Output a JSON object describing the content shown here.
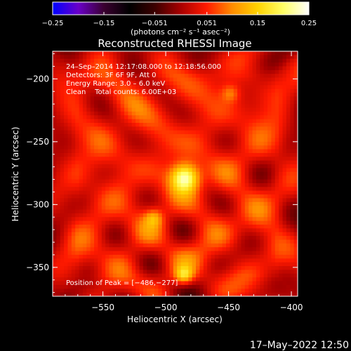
{
  "chart_data": {
    "type": "heatmap",
    "title": "Reconstructed RHESSI Image",
    "xlabel": "Heliocentric X (arcsec)",
    "ylabel": "Heliocentric Y (arcsec)",
    "xlim": [
      -590,
      -395
    ],
    "ylim": [
      -373,
      -178
    ],
    "x_ticks": [
      -550,
      -500,
      -450,
      -400
    ],
    "y_ticks": [
      -200,
      -250,
      -300,
      -350
    ],
    "x_tick_labels": [
      "−550",
      "−500",
      "−450",
      "−400"
    ],
    "y_tick_labels": [
      "−200",
      "−250",
      "−300",
      "−350"
    ],
    "peak": {
      "x": -486,
      "y": -277,
      "value": 0.25
    },
    "secondary_peaks": [
      {
        "x": -487,
        "y": -355,
        "value": 0.16
      },
      {
        "x": -511,
        "y": -309,
        "value": 0.12
      },
      {
        "x": -450,
        "y": -210,
        "value": 0.11
      }
    ],
    "colorbar": {
      "min": -0.25,
      "max": 0.25,
      "tick_values": [
        -0.25,
        -0.15,
        -0.051,
        0.051,
        0.15,
        0.25
      ],
      "tick_labels": [
        "−0.25",
        "−0.15",
        "−0.051",
        "0.051",
        "0.15",
        "0.25"
      ],
      "units": "(photons cm⁻² s⁻¹ asec⁻²)",
      "colormap": [
        "#0000ff",
        "#6a00c8",
        "#3a0030",
        "#000000",
        "#3c0000",
        "#a80000",
        "#ff1a00",
        "#ff8c00",
        "#ffd200",
        "#ffff66",
        "#ffffff"
      ]
    },
    "annotations": [
      "24–Sep–2014 12:17:08.000 to 12:18:56.000",
      "Detectors: 3F 6F 9F, Att 0",
      "Energy Range: 3.0 – 6.0 keV",
      "Clean    Total counts: 6.00E+03"
    ],
    "peak_label": "Position of Peak = [−486,−277]",
    "grid": false,
    "legend": "colorbar top"
  },
  "footer_timestamp": "17–May–2022 12:50"
}
